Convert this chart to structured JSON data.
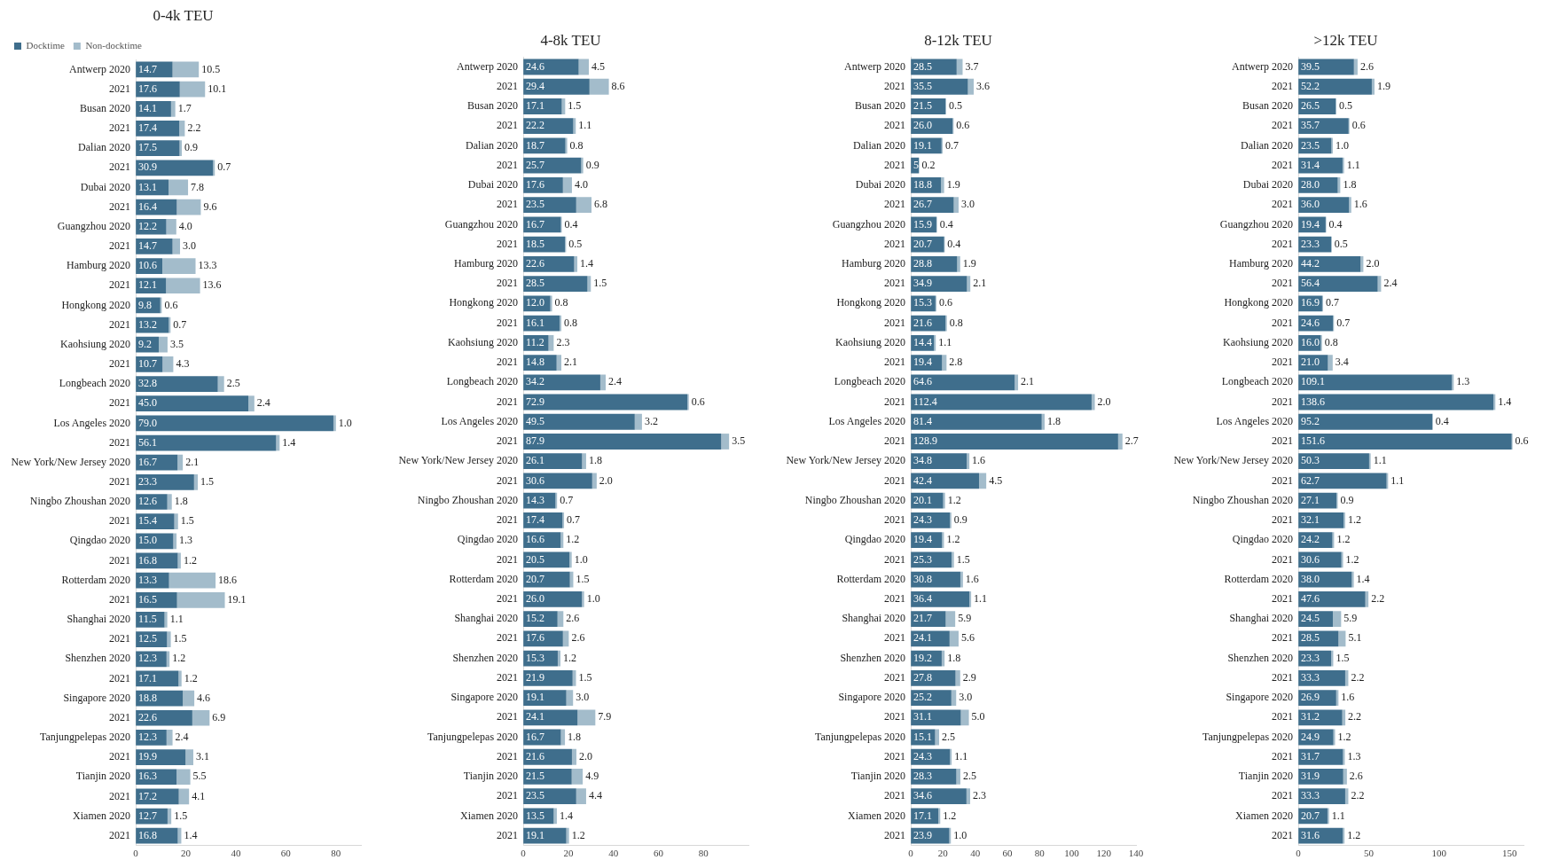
{
  "chart_data": [
    {
      "type": "bar",
      "orientation": "horizontal",
      "stacked": true,
      "title": "0-4k TEU",
      "legend": "top left",
      "grid": false,
      "categories": [
        "Antwerp 2020",
        "2021",
        "Busan 2020",
        "2021",
        "Dalian 2020",
        "2021",
        "Dubai 2020",
        "2021",
        "Guangzhou 2020",
        "2021",
        "Hamburg 2020",
        "2021",
        "Hongkong 2020",
        "2021",
        "Kaohsiung 2020",
        "2021",
        "Longbeach 2020",
        "2021",
        "Los Angeles 2020",
        "2021",
        "New York/New Jersey 2020",
        "2021",
        "Ningbo Zhoushan 2020",
        "2021",
        "Qingdao 2020",
        "2021",
        "Rotterdam 2020",
        "2021",
        "Shanghai 2020",
        "2021",
        "Shenzhen 2020",
        "2021",
        "Singapore 2020",
        "2021",
        "Tanjungpelepas 2020",
        "2021",
        "Tianjin 2020",
        "2021",
        "Xiamen 2020",
        "2021"
      ],
      "xlim": [
        0,
        90
      ],
      "xticks": [
        0,
        20,
        40,
        60,
        80
      ],
      "series": [
        {
          "name": "Docktime",
          "color": "#3f6e8c",
          "values": [
            14.7,
            17.6,
            14.1,
            17.4,
            17.5,
            30.9,
            13.1,
            16.4,
            12.2,
            14.7,
            10.6,
            12.1,
            9.8,
            13.2,
            9.2,
            10.7,
            32.8,
            45.0,
            79.0,
            56.1,
            16.7,
            23.3,
            12.6,
            15.4,
            15.0,
            16.8,
            13.3,
            16.5,
            11.5,
            12.5,
            12.3,
            17.1,
            18.8,
            22.6,
            12.3,
            19.9,
            16.3,
            17.2,
            12.7,
            16.8
          ],
          "value_labels": [
            "14.7",
            "17.6",
            "14.1",
            "17.4",
            "17.5",
            "30.9",
            "13.1",
            "16.4",
            "12.2",
            "14.7",
            "10.6",
            "12.1",
            "9.8",
            "13.2",
            "9.2",
            "10.7",
            "32.8",
            "45.0",
            "79.0",
            "56.1",
            "16.7",
            "23.3",
            "12.6",
            "15.4",
            "15.0",
            "16.8",
            "13.3",
            "16.5",
            "11.5",
            "12.5",
            "12.3",
            "17.1",
            "18.8",
            "22.6",
            "12.3",
            "19.9",
            "16.3",
            "17.2",
            "12.7",
            "16.8"
          ]
        },
        {
          "name": "Non-docktime",
          "color": "#a3bccb",
          "values": [
            10.5,
            10.1,
            1.7,
            2.2,
            0.9,
            0.7,
            7.8,
            9.6,
            4.0,
            3.0,
            13.3,
            13.6,
            0.6,
            0.7,
            3.5,
            4.3,
            2.5,
            2.4,
            1.0,
            1.4,
            2.1,
            1.5,
            1.8,
            1.5,
            1.3,
            1.2,
            18.6,
            19.1,
            1.1,
            1.5,
            1.2,
            1.2,
            4.6,
            6.9,
            2.4,
            3.1,
            5.5,
            4.1,
            1.5,
            1.4
          ],
          "value_labels": [
            "10.5",
            "10.1",
            "1.7",
            "2.2",
            "0.9",
            "0.7",
            "7.8",
            "9.6",
            "4.0",
            "3.0",
            "13.3",
            "13.6",
            "0.6",
            "0.7",
            "3.5",
            "4.3",
            "2.5",
            "2.4",
            "1.0",
            "1.4",
            "2.1",
            "1.5",
            "1.8",
            "1.5",
            "1.3",
            "1.2",
            "18.6",
            "19.1",
            "1.1",
            "1.5",
            "1.2",
            "1.2",
            "4.6",
            "6.9",
            "2.4",
            "3.1",
            "5.5",
            "4.1",
            "1.5",
            "1.4"
          ]
        }
      ]
    },
    {
      "type": "bar",
      "orientation": "horizontal",
      "stacked": true,
      "title": "4-8k TEU",
      "grid": false,
      "categories": [
        "Antwerp 2020",
        "2021",
        "Busan 2020",
        "2021",
        "Dalian 2020",
        "2021",
        "Dubai 2020",
        "2021",
        "Guangzhou 2020",
        "2021",
        "Hamburg 2020",
        "2021",
        "Hongkong 2020",
        "2021",
        "Kaohsiung 2020",
        "2021",
        "Longbeach 2020",
        "2021",
        "Los Angeles 2020",
        "2021",
        "New York/New Jersey 2020",
        "2021",
        "Ningbo Zhoushan 2020",
        "2021",
        "Qingdao 2020",
        "2021",
        "Rotterdam 2020",
        "2021",
        "Shanghai 2020",
        "2021",
        "Shenzhen 2020",
        "2021",
        "Singapore 2020",
        "2021",
        "Tanjungpelepas 2020",
        "2021",
        "Tianjin 2020",
        "2021",
        "Xiamen 2020",
        "2021"
      ],
      "xlim": [
        0,
        100
      ],
      "xticks": [
        0,
        20,
        40,
        60,
        80
      ],
      "series": [
        {
          "color": "#3f6e8c",
          "values": [
            24.6,
            29.4,
            17.1,
            22.2,
            18.7,
            25.7,
            17.6,
            23.5,
            16.7,
            18.5,
            22.6,
            28.5,
            12.0,
            16.1,
            11.2,
            14.8,
            34.2,
            72.9,
            49.5,
            87.9,
            26.1,
            30.6,
            14.3,
            17.4,
            16.6,
            20.5,
            20.7,
            26.0,
            15.2,
            17.6,
            15.3,
            21.9,
            19.1,
            24.1,
            16.7,
            21.6,
            21.5,
            23.5,
            13.5,
            19.1
          ],
          "value_labels": [
            "24.6",
            "29.4",
            "17.1",
            "22.2",
            "18.7",
            "25.7",
            "17.6",
            "23.5",
            "16.7",
            "18.5",
            "22.6",
            "28.5",
            "12.0",
            "16.1",
            "11.2",
            "14.8",
            "34.2",
            "72.9",
            "49.5",
            "87.9",
            "26.1",
            "30.6",
            "14.3",
            "17.4",
            "16.6",
            "20.5",
            "20.7",
            "26.0",
            "15.2",
            "17.6",
            "15.3",
            "21.9",
            "19.1",
            "24.1",
            "16.7",
            "21.6",
            "21.5",
            "23.5",
            "13.5",
            "19.1"
          ]
        },
        {
          "color": "#a3bccb",
          "values": [
            4.5,
            8.6,
            1.5,
            1.1,
            0.8,
            0.9,
            4.0,
            6.8,
            0.4,
            0.5,
            1.4,
            1.5,
            0.8,
            0.8,
            2.3,
            2.1,
            2.4,
            0.6,
            3.2,
            3.5,
            1.8,
            2.0,
            0.7,
            0.7,
            1.2,
            1.0,
            1.5,
            1.0,
            2.6,
            2.6,
            1.2,
            1.5,
            3.0,
            7.9,
            1.8,
            2.0,
            4.9,
            4.4,
            1.4,
            1.2
          ],
          "value_labels": [
            "4.5",
            "8.6",
            "1.5",
            "1.1",
            "0.8",
            "0.9",
            "4.0",
            "6.8",
            "0.4",
            "0.5",
            "1.4",
            "1.5",
            "0.8",
            "0.8",
            "2.3",
            "2.1",
            "2.4",
            "0.6",
            "3.2",
            "3.5",
            "1.8",
            "2.0",
            "0.7",
            "0.7",
            "1.2",
            "1.0",
            "1.5",
            "1.0",
            "2.6",
            "2.6",
            "1.2",
            "1.5",
            "3.0",
            "7.9",
            "1.8",
            "2.0",
            "4.9",
            "4.4",
            "1.4",
            "1.2"
          ]
        }
      ]
    },
    {
      "type": "bar",
      "orientation": "horizontal",
      "stacked": true,
      "title": "8-12k TEU",
      "grid": false,
      "categories": [
        "Antwerp 2020",
        "2021",
        "Busan 2020",
        "2021",
        "Dalian 2020",
        "2021",
        "Dubai 2020",
        "2021",
        "Guangzhou 2020",
        "2021",
        "Hamburg 2020",
        "2021",
        "Hongkong 2020",
        "2021",
        "Kaohsiung 2020",
        "2021",
        "Longbeach 2020",
        "2021",
        "Los Angeles 2020",
        "2021",
        "New York/New Jersey 2020",
        "2021",
        "Ningbo Zhoushan 2020",
        "2021",
        "Qingdao 2020",
        "2021",
        "Rotterdam 2020",
        "2021",
        "Shanghai 2020",
        "2021",
        "Shenzhen 2020",
        "2021",
        "Singapore 2020",
        "2021",
        "Tanjungpelepas 2020",
        "2021",
        "Tianjin 2020",
        "2021",
        "Xiamen 2020",
        "2021"
      ],
      "xlim": [
        0,
        140
      ],
      "xticks": [
        0,
        20,
        40,
        60,
        80,
        100,
        120,
        140
      ],
      "series": [
        {
          "color": "#3f6e8c",
          "values": [
            28.5,
            35.5,
            21.5,
            26.0,
            19.1,
            5,
            18.8,
            26.7,
            15.9,
            20.7,
            28.8,
            34.9,
            15.3,
            21.6,
            14.4,
            19.4,
            64.6,
            112.4,
            81.4,
            128.9,
            34.8,
            42.4,
            20.1,
            24.3,
            19.4,
            25.3,
            30.8,
            36.4,
            21.7,
            24.1,
            19.2,
            27.8,
            25.2,
            31.1,
            15.1,
            24.3,
            28.3,
            34.6,
            17.1,
            23.9
          ],
          "value_labels": [
            "28.5",
            "35.5",
            "21.5",
            "26.0",
            "19.1",
            "5",
            "18.8",
            "26.7",
            "15.9",
            "20.7",
            "28.8",
            "34.9",
            "15.3",
            "21.6",
            "14.4",
            "19.4",
            "64.6",
            "112.4",
            "81.4",
            "128.9",
            "34.8",
            "42.4",
            "20.1",
            "24.3",
            "19.4",
            "25.3",
            "30.8",
            "36.4",
            "21.7",
            "24.1",
            "19.2",
            "27.8",
            "25.2",
            "31.1",
            "15.1",
            "24.3",
            "28.3",
            "34.6",
            "17.1",
            "23.9"
          ]
        },
        {
          "color": "#a3bccb",
          "values": [
            3.7,
            3.6,
            0.5,
            0.6,
            0.7,
            0.2,
            1.9,
            3.0,
            0.4,
            0.4,
            1.9,
            2.1,
            0.6,
            0.8,
            1.1,
            2.8,
            2.1,
            2.0,
            1.8,
            2.7,
            1.6,
            4.5,
            1.2,
            0.9,
            1.2,
            1.5,
            1.6,
            1.1,
            5.9,
            5.6,
            1.8,
            2.9,
            3.0,
            5.0,
            2.5,
            1.1,
            2.5,
            2.3,
            1.2,
            1.0
          ],
          "value_labels": [
            "3.7",
            "3.6",
            "0.5",
            "0.6",
            "0.7",
            "0.2",
            "1.9",
            "3.0",
            "0.4",
            "0.4",
            "1.9",
            "2.1",
            "0.6",
            "0.8",
            "1.1",
            "2.8",
            "2.1",
            "2.0",
            "1.8",
            "2.7",
            "1.6",
            "4.5",
            "1.2",
            "0.9",
            "1.2",
            "1.5",
            "1.6",
            "1.1",
            "5.9",
            "5.6",
            "1.8",
            "2.9",
            "3.0",
            "5.0",
            "2.5",
            "1.1",
            "2.5",
            "2.3",
            "1.2",
            "1.0"
          ]
        }
      ]
    },
    {
      "type": "bar",
      "orientation": "horizontal",
      "stacked": true,
      "title": ">12k TEU",
      "grid": false,
      "categories": [
        "Antwerp 2020",
        "2021",
        "Busan 2020",
        "2021",
        "Dalian 2020",
        "2021",
        "Dubai 2020",
        "2021",
        "Guangzhou 2020",
        "2021",
        "Hamburg 2020",
        "2021",
        "Hongkong 2020",
        "2021",
        "Kaohsiung 2020",
        "2021",
        "Longbeach 2020",
        "2021",
        "Los Angeles 2020",
        "2021",
        "New York/New Jersey 2020",
        "2021",
        "Ningbo Zhoushan 2020",
        "2021",
        "Qingdao 2020",
        "2021",
        "Rotterdam 2020",
        "2021",
        "Shanghai 2020",
        "2021",
        "Shenzhen 2020",
        "2021",
        "Singapore 2020",
        "2021",
        "Tanjungpelepas 2020",
        "2021",
        "Tianjin 2020",
        "2021",
        "Xiamen 2020",
        "2021"
      ],
      "xlim": [
        0,
        160
      ],
      "xticks": [
        0,
        50,
        100,
        150
      ],
      "series": [
        {
          "color": "#3f6e8c",
          "values": [
            39.5,
            52.2,
            26.5,
            35.7,
            23.5,
            31.4,
            28.0,
            36.0,
            19.4,
            23.3,
            44.2,
            56.4,
            16.9,
            24.6,
            16.0,
            21.0,
            109.1,
            138.6,
            95.2,
            151.6,
            50.3,
            62.7,
            27.1,
            32.1,
            24.2,
            30.6,
            38.0,
            47.6,
            24.5,
            28.5,
            23.3,
            33.3,
            26.9,
            31.2,
            24.9,
            31.7,
            31.9,
            33.3,
            20.7,
            31.6
          ],
          "value_labels": [
            "39.5",
            "52.2",
            "26.5",
            "35.7",
            "23.5",
            "31.4",
            "28.0",
            "36.0",
            "19.4",
            "23.3",
            "44.2",
            "56.4",
            "16.9",
            "24.6",
            "16.0",
            "21.0",
            "109.1",
            "138.6",
            "95.2",
            "151.6",
            "50.3",
            "62.7",
            "27.1",
            "32.1",
            "24.2",
            "30.6",
            "38.0",
            "47.6",
            "24.5",
            "28.5",
            "23.3",
            "33.3",
            "26.9",
            "31.2",
            "24.9",
            "31.7",
            "31.9",
            "33.3",
            "20.7",
            "31.6"
          ]
        },
        {
          "color": "#a3bccb",
          "values": [
            2.6,
            1.9,
            0.5,
            0.6,
            1.0,
            1.1,
            1.8,
            1.6,
            0.4,
            0.5,
            2.0,
            2.4,
            0.7,
            0.7,
            0.8,
            3.4,
            1.3,
            1.4,
            0.4,
            0.6,
            1.1,
            1.1,
            0.9,
            1.2,
            1.2,
            1.2,
            1.4,
            2.2,
            5.9,
            5.1,
            1.5,
            2.2,
            1.6,
            2.2,
            1.2,
            1.3,
            2.6,
            2.2,
            1.1,
            1.2
          ],
          "value_labels": [
            "2.6",
            "1.9",
            "0.5",
            "0.6",
            "1.0",
            "1.1",
            "1.8",
            "1.6",
            "0.4",
            "0.5",
            "2.0",
            "2.4",
            "0.7",
            "0.7",
            "0.8",
            "3.4",
            "1.3",
            "1.4",
            "0.4",
            "0.6",
            "1.1",
            "1.1",
            "0.9",
            "1.2",
            "1.2",
            "1.2",
            "1.4",
            "2.2",
            "5.9",
            "5.1",
            "1.5",
            "2.2",
            "1.6",
            "2.2",
            "1.2",
            "1.3",
            "2.6",
            "2.2",
            "1.1",
            "1.2"
          ]
        }
      ]
    }
  ]
}
